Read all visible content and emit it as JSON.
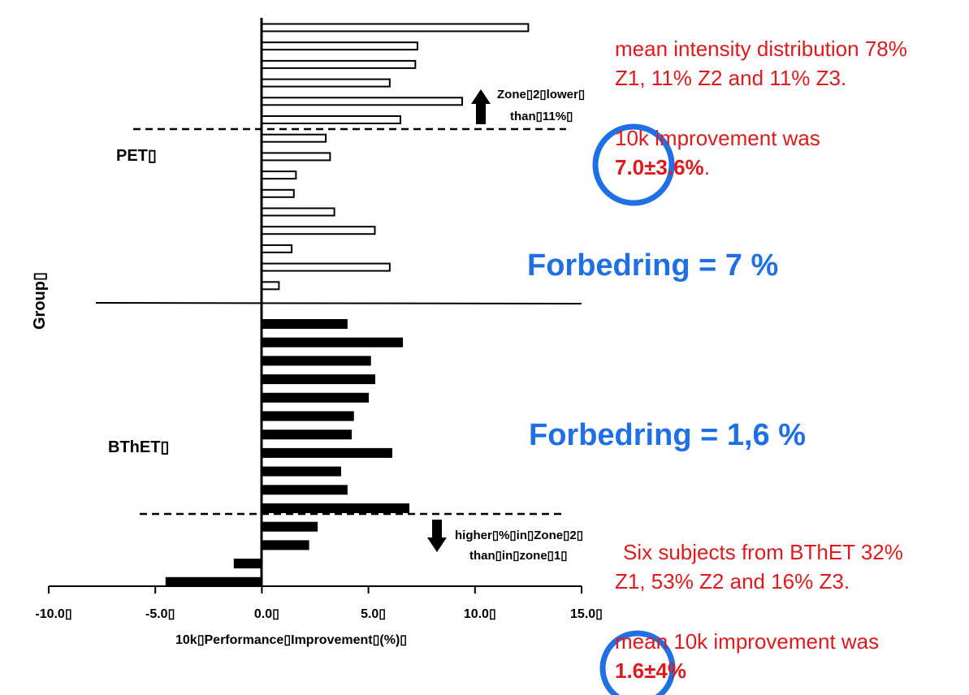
{
  "chart_data": {
    "type": "bar",
    "orientation": "horizontal",
    "xlabel": "10k▯Performance▯Improvement▯(%)▯",
    "ylabel": "Group▯",
    "xlim": [
      -10,
      15
    ],
    "x_tick_labels": [
      "-10.0▯",
      "-5.0▯",
      "0.0▯",
      "5.0▯",
      "10.0▯",
      "15.0▯"
    ],
    "x_tick_values": [
      -10,
      -5,
      0,
      5,
      10,
      15
    ],
    "grid": false,
    "series": [
      {
        "name": "PET▯",
        "color": "#ffffff",
        "values": [
          12.5,
          7.3,
          7.2,
          6.0,
          9.4,
          6.5,
          3.0,
          3.2,
          1.6,
          1.5,
          3.4,
          5.3,
          1.4,
          6.0,
          0.8
        ]
      },
      {
        "name": "BThET▯",
        "color": "#000000",
        "values": [
          4.0,
          6.6,
          5.1,
          5.3,
          5.0,
          4.3,
          4.2,
          6.1,
          3.7,
          4.0,
          6.9,
          2.6,
          2.2,
          -1.3,
          -4.5
        ]
      }
    ],
    "group_labels": [
      "PET▯",
      "BThET▯"
    ],
    "annotations": {
      "upper": [
        "Zone▯2▯lower▯",
        "than▯11%▯"
      ],
      "lower": [
        "higher▯%▯in▯Zone▯2▯",
        "than▯in▯zone▯1▯"
      ]
    }
  },
  "overlay": {
    "pet_note": {
      "line1": "mean intensity distribution 78%",
      "line2": "Z1, 11% Z2 and 11% Z3.",
      "line3": "10k improvement was",
      "value": "7.0±3.6%",
      "suffix": "."
    },
    "pet_summary": "Forbedring = 7 %",
    "bthet_summary": "Forbedring = 1,6 %",
    "bthet_note": {
      "line1": "Six subjects from BThET 32%",
      "line2": "Z1, 53% Z2 and 16% Z3.",
      "line3": "mean 10k improvement was",
      "value": "1.6±4%"
    },
    "colors": {
      "red": "#e0191b",
      "blue": "#1f6fe5"
    }
  }
}
